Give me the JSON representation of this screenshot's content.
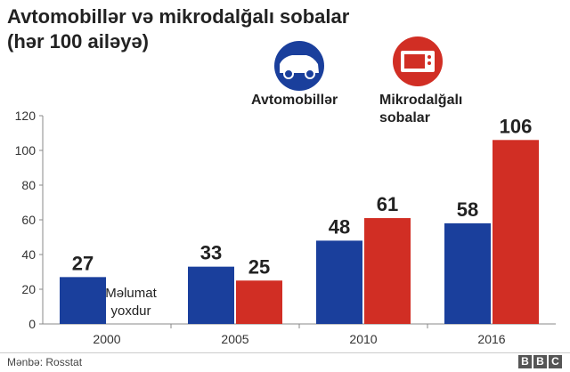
{
  "title_line1": "Avtomobillər və mikrodalğalı sobalar",
  "title_line2": "(hər 100 ailəyə)",
  "legend": {
    "cars_label": "Avtomobillər",
    "micro_label_line1": "Mikrodalğalı",
    "micro_label_line2": "sobalar",
    "cars_icon": "car-icon",
    "micro_icon": "microwave-icon"
  },
  "colors": {
    "cars": "#1a3f9c",
    "micro": "#d12e24"
  },
  "chart_data": {
    "type": "bar",
    "title": "Avtomobillər və mikrodalğalı sobalar (hər 100 ailəyə)",
    "categories": [
      "2000",
      "2005",
      "2010",
      "2016"
    ],
    "series": [
      {
        "name": "Avtomobillər",
        "values": [
          27,
          33,
          48,
          58
        ]
      },
      {
        "name": "Mikrodalğalı sobalar",
        "values": [
          null,
          25,
          61,
          106
        ]
      }
    ],
    "ylim": [
      0,
      120
    ],
    "yticks": [
      0,
      20,
      40,
      60,
      80,
      100,
      120
    ],
    "xlabel": "",
    "ylabel": "",
    "grid": false,
    "no_data_note_line1": "Məlumat",
    "no_data_note_line2": "yoxdur"
  },
  "footer": {
    "source": "Mənbə: Rosstat",
    "logo": [
      "B",
      "B",
      "C"
    ]
  }
}
